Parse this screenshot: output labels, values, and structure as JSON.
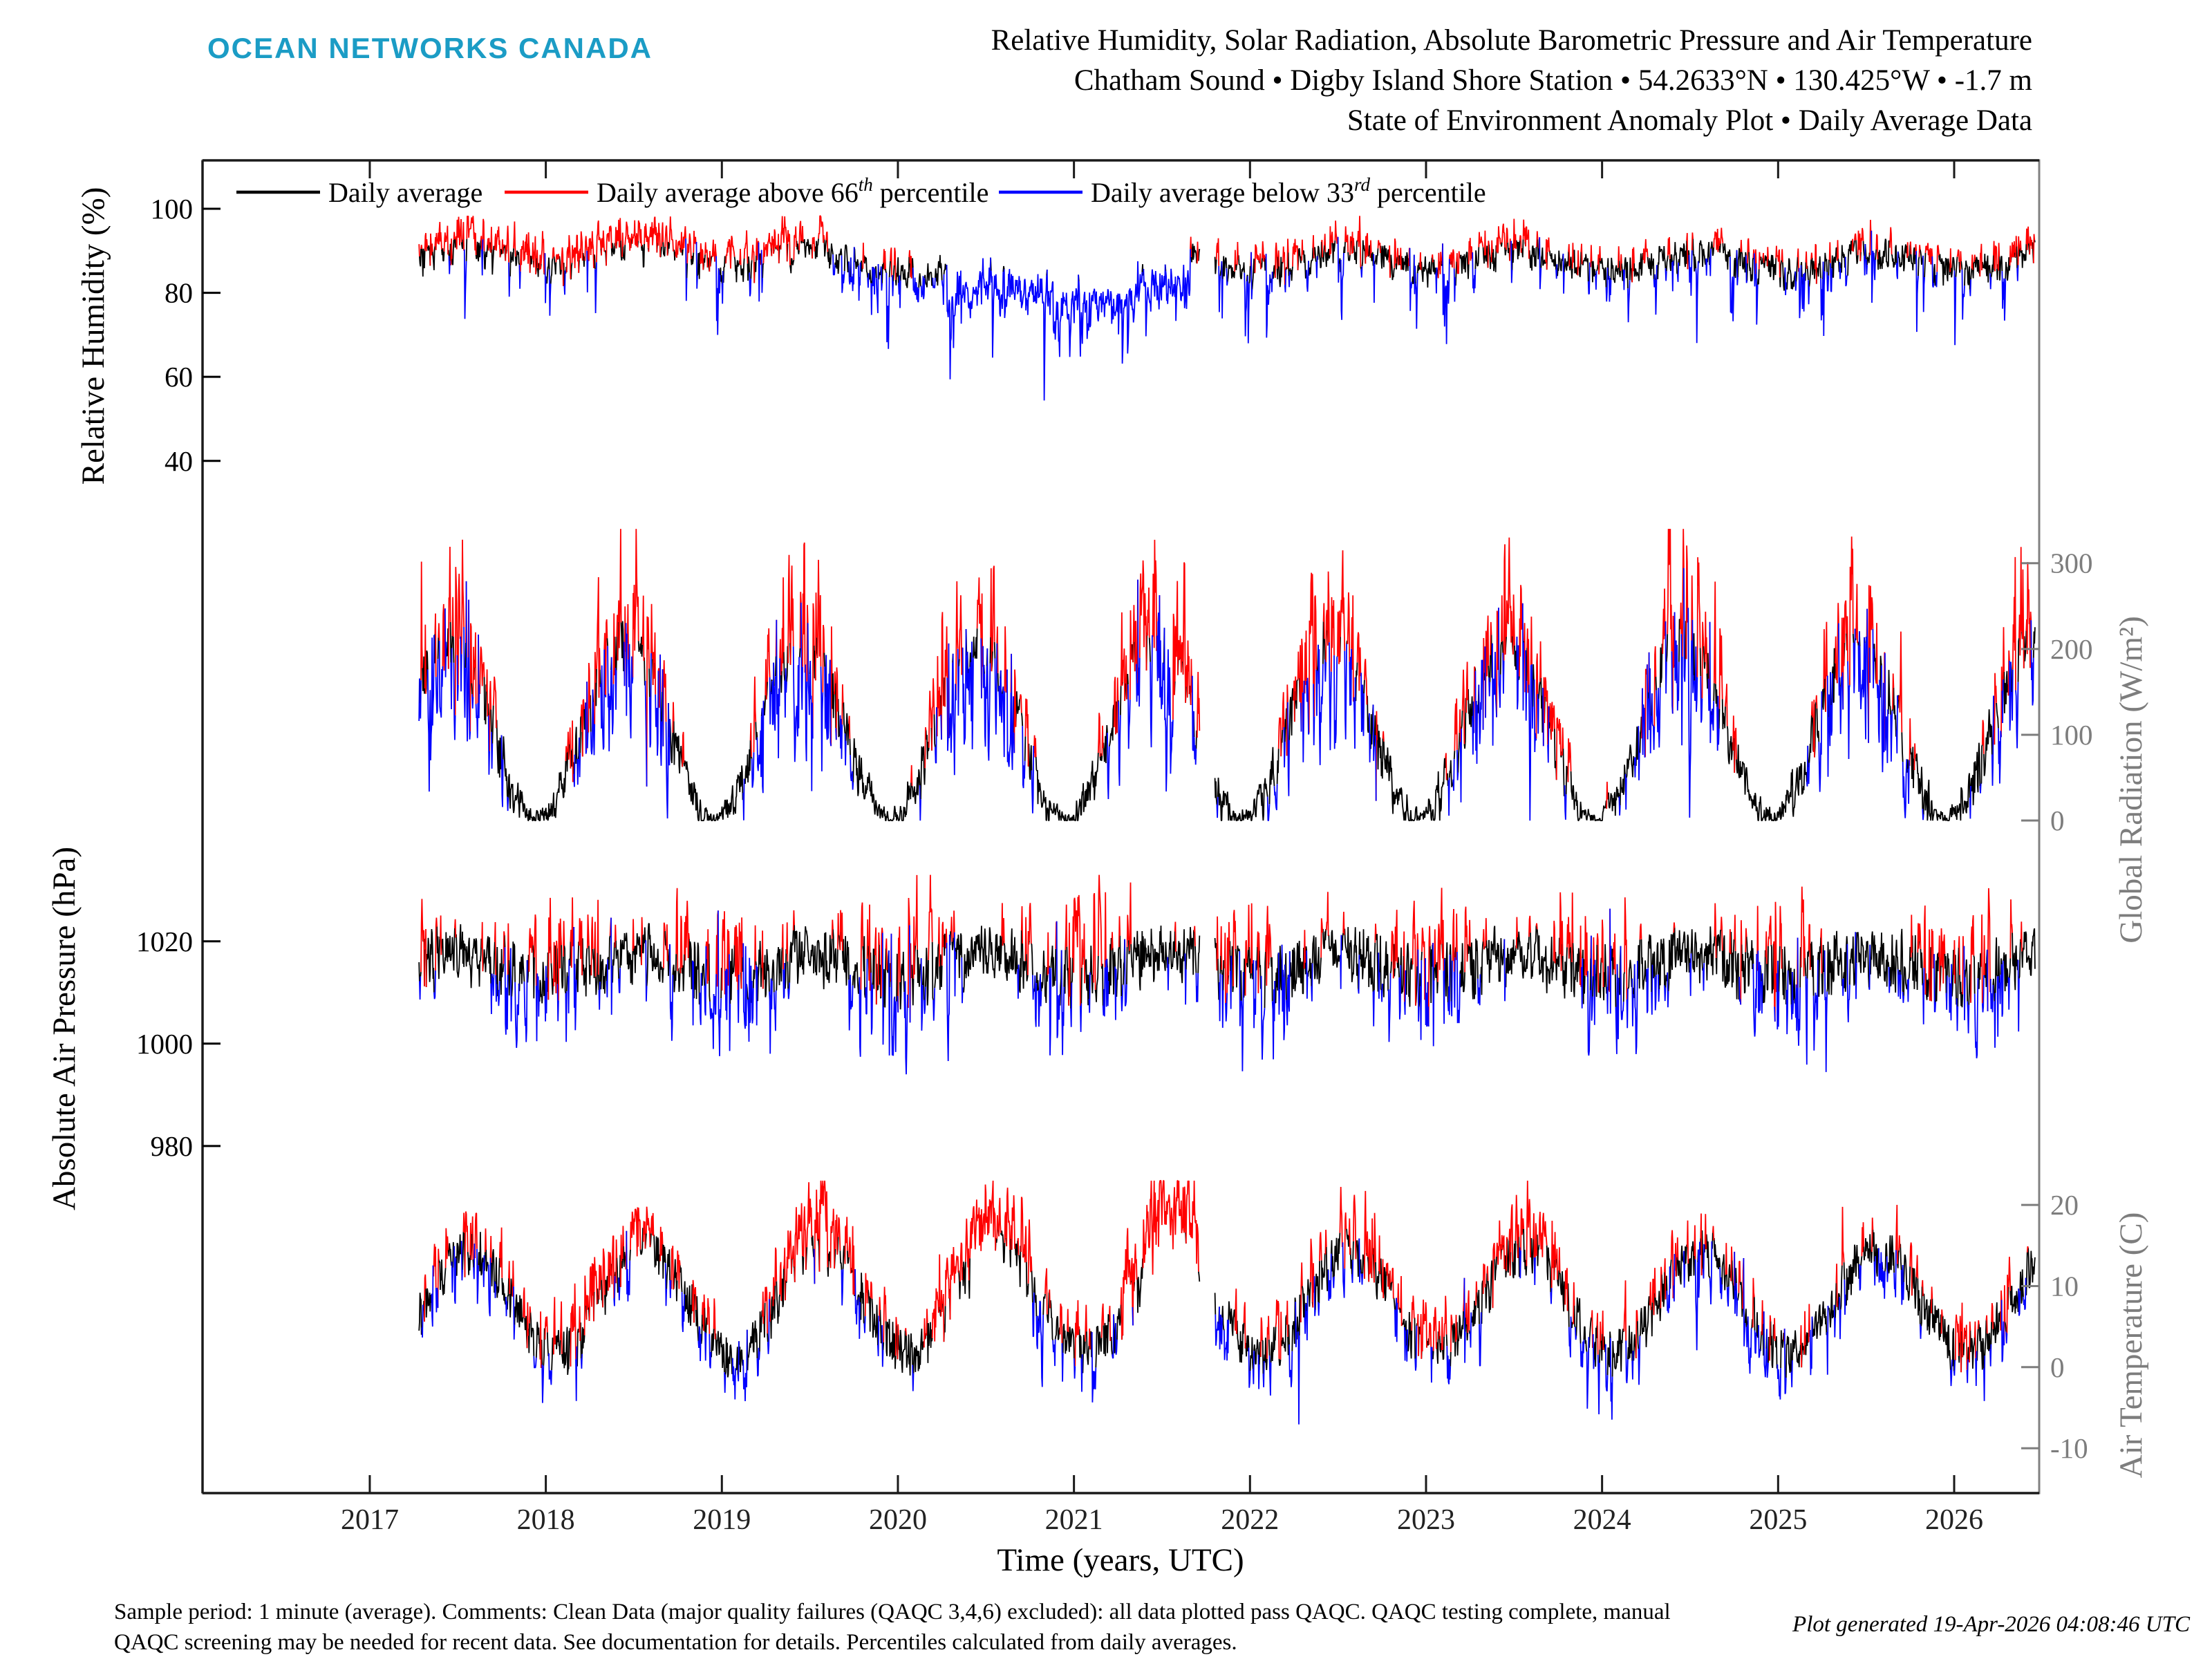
{
  "header": {
    "logo": "OCEAN NETWORKS CANADA",
    "title_line1": "Relative Humidity, Solar Radiation, Absolute Barometric Pressure and Air Temperature",
    "title_line2": "Chatham Sound • Digby Island Shore Station • 54.2633°N • 130.425°W • -1.7 m",
    "title_line3": "State of Environment Anomaly Plot • Daily Average Data"
  },
  "legend": {
    "items": [
      {
        "pre": "Daily average",
        "sup": "",
        "post": "",
        "color": "#000000"
      },
      {
        "pre": "Daily average above 66",
        "sup": "th",
        "post": " percentile",
        "color": "#ff0000"
      },
      {
        "pre": "Daily average below 33",
        "sup": "rd",
        "post": " percentile",
        "color": "#0000ff"
      }
    ]
  },
  "footer": {
    "line1": "Sample period: 1 minute (average). Comments: Clean Data (major quality failures (QAQC 3,4,6) excluded): all data plotted pass QAQC. QAQC testing complete, manual",
    "line2": "QAQC screening may be needed for recent data. See documentation for details. Percentiles calculated from daily averages.",
    "generated": "Plot generated 19-Apr-2026 04:08:46 UTC"
  },
  "colors": {
    "daily": "#000000",
    "above": "#ff0000",
    "below": "#0000ff",
    "right_axis": "#7d7d7d",
    "frame_gray": "#808080",
    "frame_dark": "#1a1a1a",
    "logo": "#1b9cc5"
  },
  "chart_data": {
    "type": "line",
    "xlabel": "Time (years, UTC)",
    "x_tick_years": [
      2017,
      2018,
      2019,
      2020,
      2021,
      2022,
      2023,
      2024,
      2025,
      2026
    ],
    "xlim": [
      2016.05,
      2026.483
    ],
    "data_start": 2017.28,
    "data_end": 2026.46,
    "dt": 0.00274,
    "gaps": [
      [
        2021.715,
        2021.8
      ]
    ],
    "seed": 1337,
    "series_legend": [
      "Daily average",
      "Daily average above 66th percentile",
      "Daily average below 33rd percentile"
    ],
    "panels": [
      {
        "name": "relative-humidity",
        "ylabel": "Relative Humidity (%)",
        "side": "left",
        "units": "%",
        "yticks": [
          100,
          80,
          60,
          40
        ],
        "ylim": [
          22.2,
          101.15
        ],
        "typical_range": [
          75,
          97
        ],
        "base": {
          "mean": 87.5,
          "amp": 2.2,
          "peak": 0.55
        },
        "noise": {
          "sigma0": 2.3,
          "sigma1": 0
        },
        "ev": {
          "p_neg": 0.085,
          "seasonal_neg": 0.55,
          "neg_summer": false,
          "neg0": 2.5,
          "neg1": 40,
          "p_pos": 0.06,
          "seasonal_pos": 0,
          "pos_summer": true,
          "pos0": 2,
          "pos1": 7,
          "decay": 0.55
        },
        "clip": {
          "min": 20,
          "max": 98.3
        },
        "thr_hi": 3.4,
        "thr_lo": 4.8,
        "anomalies": [
          {
            "from": 2017.28,
            "to": 2019.6,
            "offset": 2.8
          },
          {
            "from": 2019.6,
            "to": 2020.28,
            "offset": -1.5
          },
          {
            "from": 2020.28,
            "to": 2021.66,
            "offset": -8.2
          },
          {
            "from": 2022.35,
            "to": 2023.6,
            "offset": 1.6
          },
          {
            "from": 2025.8,
            "to": 2026.46,
            "offset": 1.2
          }
        ]
      },
      {
        "name": "global-radiation",
        "ylabel": "Global Radiation (W/m²)",
        "side": "right",
        "units": "W/m2",
        "yticks": [
          300,
          200,
          100,
          0
        ],
        "ylim": [
          -6.4,
          332
        ],
        "typical_range": [
          0,
          330
        ],
        "base": {
          "mean": 104,
          "amp": 102,
          "peak": 0.455
        },
        "noise": {
          "sigma0": 5,
          "sigma1": 45
        },
        "ev": {
          "p_neg": 0.1,
          "seasonal_neg": 0.85,
          "neg_summer": true,
          "neg0": 8,
          "neg1": 70,
          "p_pos": 0.08,
          "seasonal_pos": 0.85,
          "pos_summer": true,
          "pos0": 10,
          "pos1": 65,
          "decay": 0.5
        },
        "clip": {
          "min": 0,
          "max": 340
        },
        "thr_hi": 30,
        "thr_lo": 34,
        "anomalies": []
      },
      {
        "name": "absolute-air-pressure",
        "ylabel": "Absolute Air Pressure (hPa)",
        "side": "left",
        "units": "hPa",
        "yticks": [
          1020,
          1000,
          980
        ],
        "ylim": [
          974.3,
          1032.4
        ],
        "typical_range": [
          975,
          1032
        ],
        "base": {
          "mean": 1015.6,
          "amp": 2.1,
          "peak": 0.52
        },
        "noise": {
          "sigma0": 6.0,
          "sigma1": -3.4
        },
        "ev": {
          "p_neg": 0.055,
          "seasonal_neg": 0.8,
          "neg_summer": false,
          "neg0": 5,
          "neg1": 28,
          "p_pos": 0.05,
          "seasonal_pos": 0.7,
          "pos_summer": false,
          "pos0": 4,
          "pos1": 13,
          "decay": 0.5
        },
        "clip": {
          "min": 973,
          "max": 1033
        },
        "thr_hi": 6.0,
        "thr_lo": 7.0,
        "anomalies": []
      },
      {
        "name": "air-temperature",
        "ylabel": "Air Temperature (C)",
        "side": "right",
        "units": "C",
        "yticks": [
          20,
          10,
          0,
          -10
        ],
        "ylim": [
          -13.4,
          22.4
        ],
        "typical_range": [
          -13,
          22
        ],
        "base": {
          "mean": 8.1,
          "amp": 6.3,
          "peak": 0.565
        },
        "noise": {
          "sigma0": 2.0,
          "sigma1": 0.3
        },
        "ev": {
          "p_neg": 0.055,
          "seasonal_neg": 0.8,
          "neg_summer": false,
          "neg0": 2.2,
          "neg1": 10,
          "p_pos": 0.05,
          "seasonal_pos": 0.6,
          "pos_summer": true,
          "pos0": 1.5,
          "pos1": 5.5,
          "decay": 0.6
        },
        "clip": {
          "min": -14,
          "max": 23
        },
        "thr_hi": 2.8,
        "thr_lo": 3.3,
        "anomalies": [
          {
            "from": 2018.25,
            "to": 2018.6,
            "offset": 1.6
          },
          {
            "from": 2019.3,
            "to": 2019.75,
            "offset": 2.4
          },
          {
            "from": 2020.2,
            "to": 2020.75,
            "offset": 3.0
          },
          {
            "from": 2021.28,
            "to": 2021.7,
            "offset": 4.6
          },
          {
            "from": 2022.95,
            "to": 2023.75,
            "offset": 1.5
          }
        ]
      }
    ]
  }
}
